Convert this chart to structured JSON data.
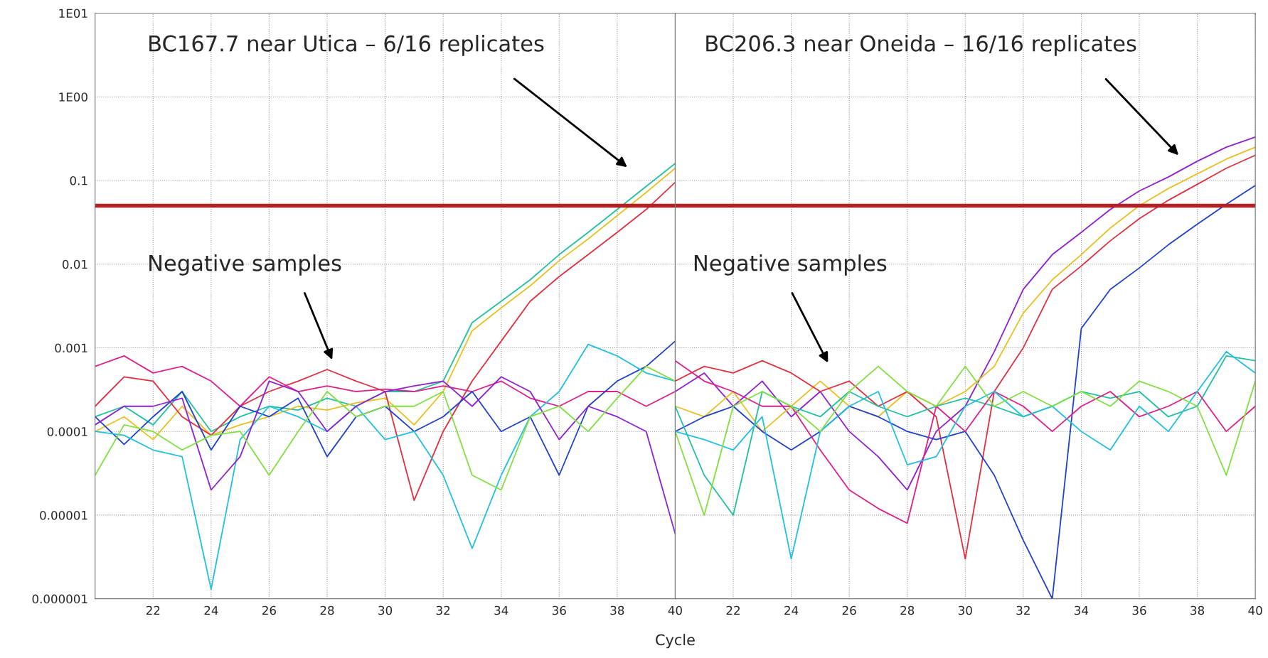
{
  "chart_data": [
    {
      "type": "line",
      "xlabel": "Cycle",
      "log": "y",
      "grid": true,
      "tick_labels": true,
      "x": [
        20,
        21,
        22,
        23,
        24,
        25,
        26,
        27,
        28,
        29,
        30,
        31,
        32,
        33,
        34,
        35,
        36,
        37,
        38,
        39,
        40
      ],
      "xlim": [
        20,
        40
      ],
      "xticks": [
        22,
        24,
        26,
        28,
        30,
        32,
        34,
        36,
        38,
        40
      ],
      "ylim": [
        1e-06,
        10
      ],
      "yticks": [
        {
          "value": 10,
          "label": "1E01"
        },
        {
          "value": 1,
          "label": "1E00"
        },
        0.1,
        0.01,
        0.001,
        0.0001,
        {
          "value": 1e-05,
          "label": "0.00001"
        },
        {
          "value": 1e-06,
          "label": "0.000001"
        }
      ],
      "ref_lines": [
        {
          "axis": "y",
          "value": 0.05,
          "color": "#b22222"
        }
      ],
      "annotations": [
        "BC167.7 near Utica – 6/16 replicates",
        "Negative samples"
      ],
      "series": [
        {
          "color": "#20c0a0",
          "values": [
            0.00015,
            0.0002,
            0.00012,
            0.0003,
            0.0001,
            0.00015,
            0.0002,
            0.00018,
            0.00025,
            0.0002,
            0.0003,
            0.0003,
            0.0004,
            0.002,
            0.0036,
            0.0065,
            0.013,
            0.024,
            0.045,
            0.085,
            0.16
          ]
        },
        {
          "color": "#e8c020",
          "values": [
            0.0001,
            0.00015,
            8e-05,
            0.0002,
            9e-05,
            0.00012,
            0.00015,
            0.0002,
            0.00018,
            0.00022,
            0.00025,
            0.00012,
            0.0003,
            0.0016,
            0.003,
            0.0055,
            0.011,
            0.02,
            0.038,
            0.072,
            0.14
          ]
        },
        {
          "color": "#e03040",
          "values": [
            0.0002,
            0.00045,
            0.0004,
            0.00015,
            9e-05,
            0.0002,
            0.0003,
            0.0004,
            0.00055,
            0.0004,
            0.0003,
            1.5e-05,
            0.0001,
            0.0004,
            0.0012,
            0.0036,
            0.0071,
            0.013,
            0.024,
            0.045,
            0.095
          ]
        },
        {
          "color": "#e0208a",
          "values": [
            0.0006,
            0.0008,
            0.0005,
            0.0006,
            0.0004,
            0.0002,
            0.00045,
            0.0003,
            0.00035,
            0.0003,
            0.00032,
            0.0003,
            0.00035,
            0.0003,
            0.0004,
            0.00025,
            0.0002,
            0.0003,
            0.0003,
            0.0002,
            0.0003
          ]
        },
        {
          "color": "#2040d0",
          "values": [
            0.00015,
            7e-05,
            0.00015,
            0.0003,
            6e-05,
            0.0002,
            0.00015,
            0.00025,
            5e-05,
            0.00015,
            0.0002,
            0.0001,
            0.00015,
            0.0003,
            0.0001,
            0.00015,
            3e-05,
            0.0002,
            0.0004,
            0.0006,
            0.0012
          ]
        },
        {
          "color": "#20c0e0",
          "values": [
            0.0001,
            9e-05,
            6e-05,
            5e-05,
            1.3e-06,
            8e-05,
            0.0002,
            0.00015,
            0.0001,
            0.0002,
            8e-05,
            0.0001,
            3e-05,
            4e-06,
            3e-05,
            0.00015,
            0.0003,
            0.0011,
            0.0008,
            0.0005,
            0.0004
          ]
        },
        {
          "color": "#9020d0",
          "values": [
            0.00012,
            0.0002,
            0.0002,
            0.00025,
            2e-05,
            5e-05,
            0.0004,
            0.0003,
            0.0001,
            0.0002,
            0.0003,
            0.00035,
            0.0004,
            0.0002,
            0.00045,
            0.0003,
            8e-05,
            0.0002,
            0.00015,
            0.0001,
            6e-06
          ]
        },
        {
          "color": "#80e040",
          "values": [
            3e-05,
            0.00012,
            0.0001,
            6e-05,
            9e-05,
            0.0001,
            3e-05,
            0.0001,
            0.0003,
            0.00015,
            0.0002,
            0.0002,
            0.0003,
            3e-05,
            2e-05,
            0.00015,
            0.0002,
            0.0001,
            0.00025,
            0.0006,
            0.0004
          ]
        }
      ]
    },
    {
      "type": "line",
      "log": "y",
      "grid": true,
      "tick_labels": "x",
      "x": [
        20,
        21,
        22,
        23,
        24,
        25,
        26,
        27,
        28,
        29,
        30,
        31,
        32,
        33,
        34,
        35,
        36,
        37,
        38,
        39,
        40
      ],
      "xlim": [
        20,
        40
      ],
      "xticks": [
        22,
        24,
        26,
        28,
        30,
        32,
        34,
        36,
        38,
        40
      ],
      "ylim": [
        1e-06,
        10
      ],
      "ref_lines": [
        {
          "axis": "y",
          "value": 0.05,
          "color": "#b22222"
        }
      ],
      "annotations": [
        "BC206.3 near Oneida – 16/16 replicates",
        "Negative samples"
      ],
      "series": [
        {
          "color": "#9020d0",
          "values": [
            0.0003,
            0.0005,
            0.0002,
            0.0004,
            0.00015,
            0.0003,
            0.0001,
            5e-05,
            2e-05,
            0.0001,
            0.0002,
            0.0009,
            0.005,
            0.013,
            0.024,
            0.045,
            0.075,
            0.11,
            0.17,
            0.25,
            0.33
          ]
        },
        {
          "color": "#e8c020",
          "values": [
            0.0002,
            0.00015,
            0.0003,
            0.0001,
            0.0002,
            0.0004,
            0.0002,
            0.00015,
            0.0003,
            0.0002,
            0.0003,
            0.0006,
            0.0026,
            0.0065,
            0.013,
            0.027,
            0.05,
            0.08,
            0.12,
            0.18,
            0.25
          ]
        },
        {
          "color": "#e03040",
          "values": [
            0.0004,
            0.0006,
            0.0005,
            0.0007,
            0.0005,
            0.0003,
            0.0004,
            0.0002,
            0.0003,
            0.00015,
            3e-06,
            0.0003,
            0.001,
            0.005,
            0.0095,
            0.019,
            0.035,
            0.058,
            0.09,
            0.14,
            0.2
          ]
        },
        {
          "color": "#2040d0",
          "values": [
            0.0001,
            0.00015,
            0.0002,
            0.0001,
            6e-05,
            0.0001,
            0.0002,
            0.00015,
            0.0001,
            8e-05,
            0.0001,
            3e-05,
            5e-06,
            1e-06,
            0.0017,
            0.005,
            0.009,
            0.017,
            0.03,
            0.052,
            0.087
          ]
        },
        {
          "color": "#20c0a0",
          "values": [
            0.0002,
            3e-05,
            1e-05,
            0.0003,
            0.0002,
            0.00015,
            0.0003,
            0.0002,
            0.00015,
            0.0002,
            0.00025,
            0.0002,
            0.00015,
            0.0002,
            0.0003,
            0.00025,
            0.0003,
            0.00015,
            0.0002,
            0.0008,
            0.0007
          ]
        },
        {
          "color": "#e0208a",
          "values": [
            0.0007,
            0.0004,
            0.0003,
            0.0002,
            0.0002,
            6e-05,
            2e-05,
            1.2e-05,
            8e-06,
            0.0002,
            0.0001,
            0.0003,
            0.0002,
            0.0001,
            0.0002,
            0.0003,
            0.00015,
            0.0002,
            0.0003,
            0.0001,
            0.0002
          ]
        },
        {
          "color": "#20c0e0",
          "values": [
            0.0001,
            8e-05,
            6e-05,
            0.00015,
            3e-06,
            0.0001,
            0.0002,
            0.0003,
            4e-05,
            5e-05,
            0.0002,
            0.0003,
            0.00015,
            0.0002,
            0.0001,
            6e-05,
            0.0002,
            0.0001,
            0.0003,
            0.0009,
            0.0005
          ]
        },
        {
          "color": "#80e040",
          "values": [
            0.0001,
            1e-05,
            0.0002,
            0.0003,
            0.0002,
            0.0001,
            0.0003,
            0.0006,
            0.0003,
            0.0002,
            0.0006,
            0.0002,
            0.0003,
            0.0002,
            0.0003,
            0.0002,
            0.0004,
            0.0003,
            0.0002,
            3e-05,
            0.0004
          ]
        }
      ]
    }
  ]
}
